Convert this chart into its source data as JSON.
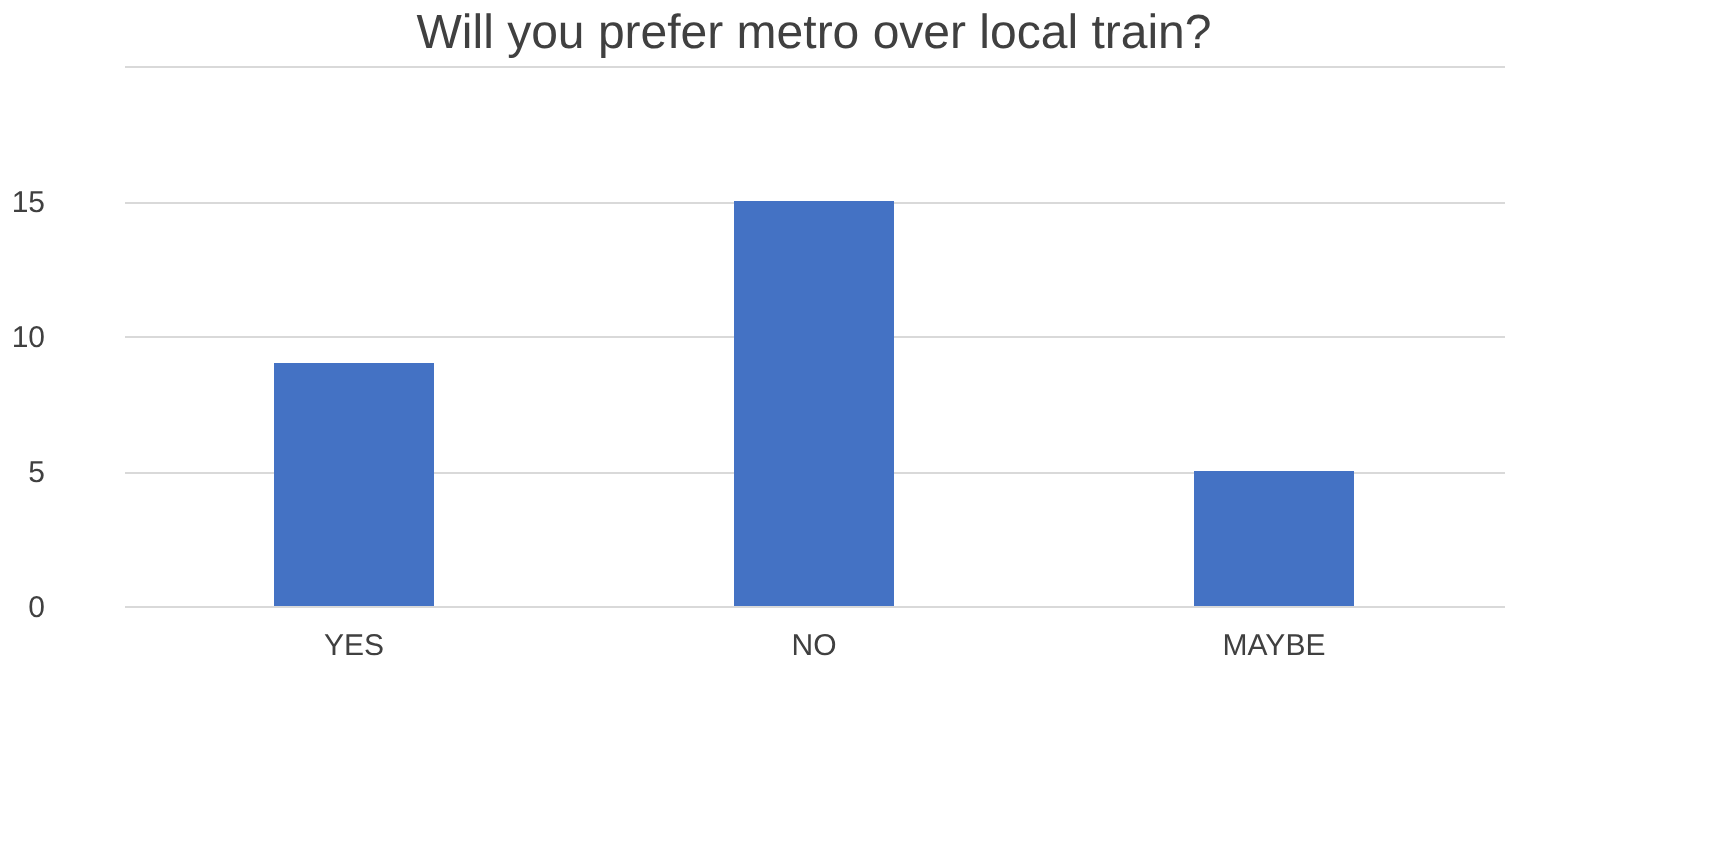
{
  "chart_data": {
    "type": "bar",
    "title": "Will you prefer metro over local train?",
    "categories": [
      "YES",
      "NO",
      "MAYBE"
    ],
    "values": [
      9,
      15,
      5
    ],
    "color": "#4472c4",
    "ylim": [
      0,
      20
    ],
    "yticks": [
      0,
      5,
      10,
      15,
      {
        "value": 20,
        "label": null
      }
    ],
    "grid": "y"
  }
}
